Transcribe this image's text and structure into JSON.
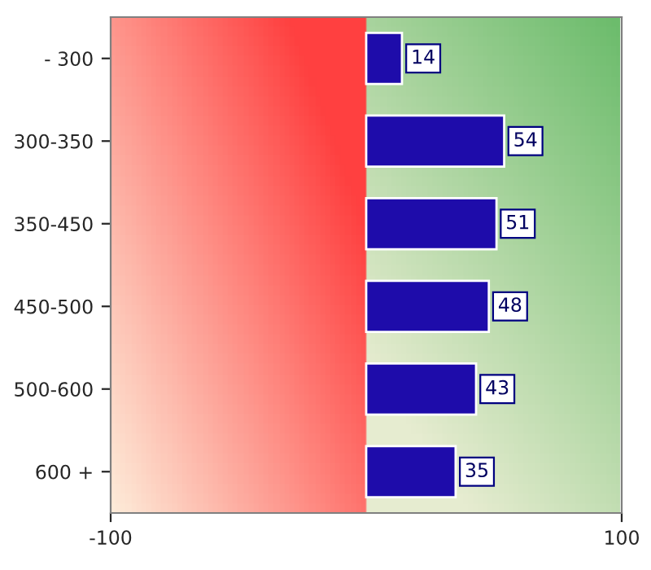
{
  "chart_data": {
    "type": "bar",
    "orientation": "horizontal",
    "categories": [
      "- 300",
      "300-350",
      "350-450",
      "450-500",
      "500-600",
      "600 +"
    ],
    "values": [
      14,
      54,
      51,
      48,
      43,
      35
    ],
    "color": "#1e0caa",
    "xlim": [
      -100,
      100
    ],
    "xticks": [
      -100,
      100
    ],
    "data_labels": true,
    "grid": false,
    "legend": false
  }
}
